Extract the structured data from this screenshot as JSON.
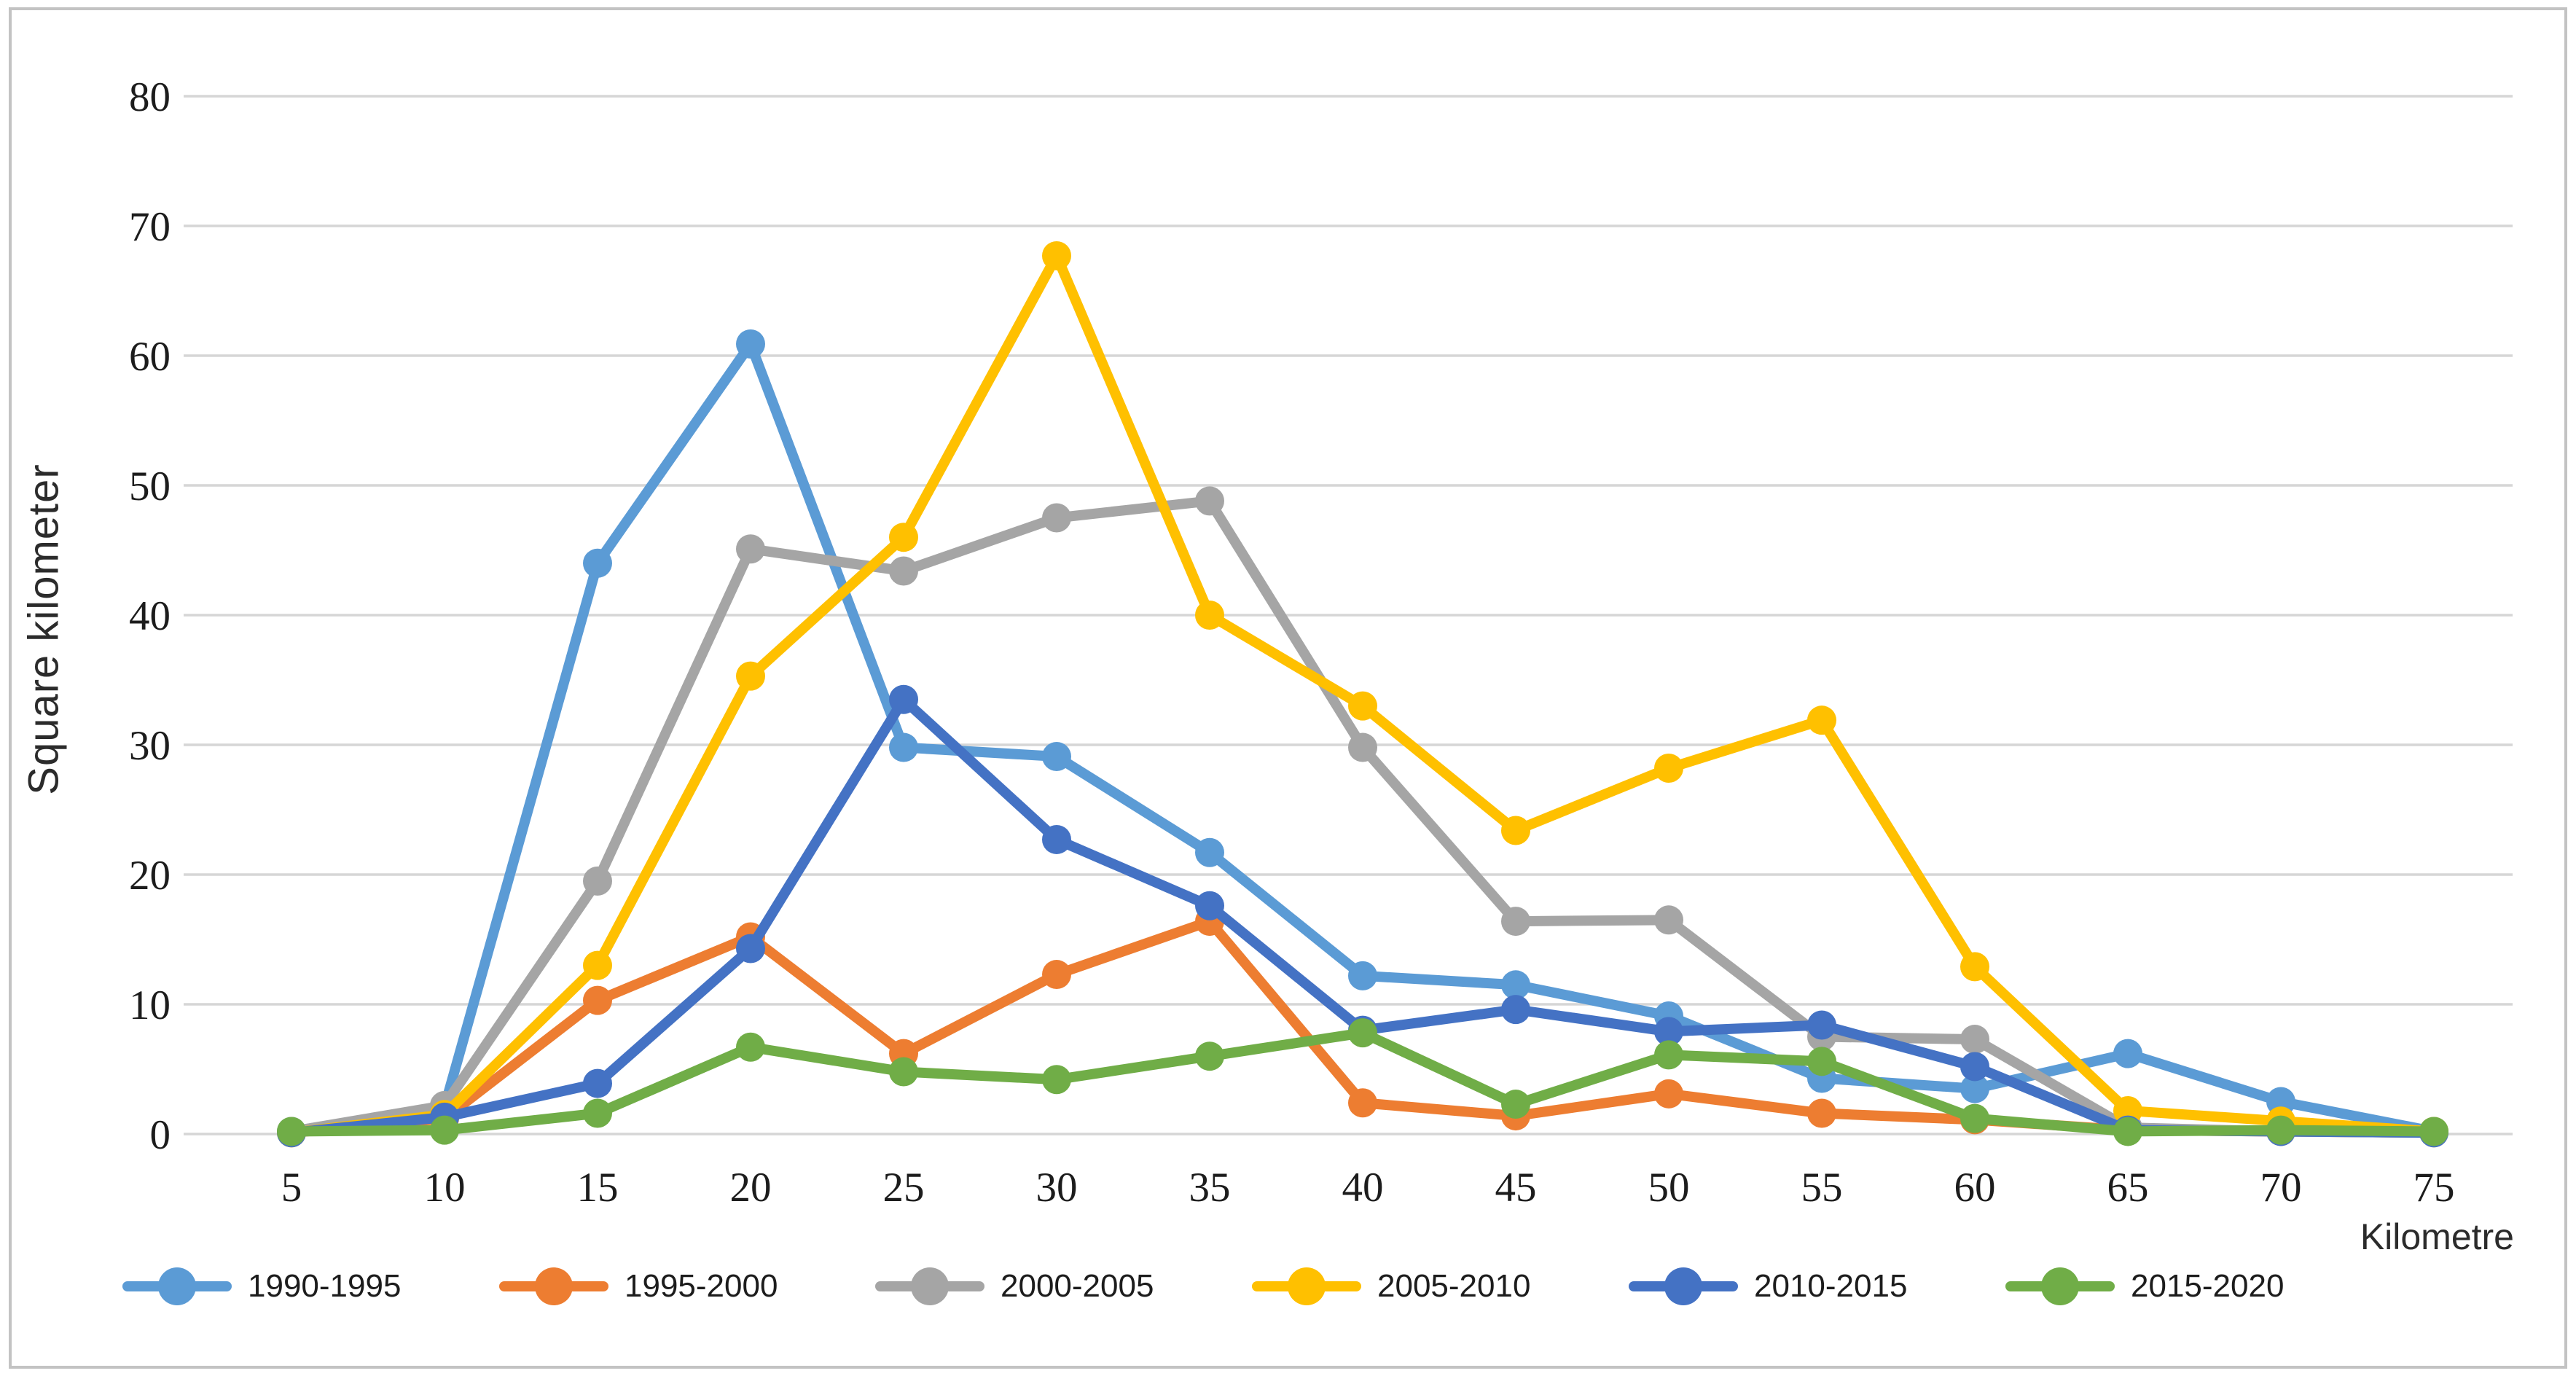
{
  "style": {
    "background": "#ffffff",
    "frame_border_color": "#c3c3c3",
    "gridline_color": "#d6d6d6",
    "tick_text_color": "#1c1c1c"
  },
  "chart_data": {
    "type": "line",
    "title": "",
    "xlabel": "Kilometre",
    "ylabel": "Square kilometer",
    "x": [
      5,
      10,
      15,
      20,
      25,
      30,
      35,
      40,
      45,
      50,
      55,
      60,
      65,
      70,
      75
    ],
    "ylim": [
      0,
      80
    ],
    "ytick_step": 10,
    "grid": "horizontal",
    "legend_position": "bottom",
    "marker": "circle",
    "series": [
      {
        "name": "1990-1995",
        "color": "#5B9BD5",
        "values": [
          0.2,
          2.1,
          44.0,
          60.9,
          29.8,
          29.1,
          21.7,
          12.2,
          11.5,
          9.1,
          4.3,
          3.5,
          6.2,
          2.5,
          0.2
        ]
      },
      {
        "name": "1995-2000",
        "color": "#ED7D31",
        "values": [
          0.1,
          1.2,
          10.3,
          15.2,
          6.2,
          12.3,
          16.4,
          2.4,
          1.4,
          3.1,
          1.6,
          1.1,
          0.3,
          0.2,
          0.1
        ]
      },
      {
        "name": "2000-2005",
        "color": "#A5A5A5",
        "values": [
          0.2,
          2.2,
          19.5,
          45.1,
          43.4,
          47.5,
          48.8,
          29.8,
          16.4,
          16.5,
          7.5,
          7.3,
          0.5,
          0.2,
          0.1
        ]
      },
      {
        "name": "2005-2010",
        "color": "#FFC000",
        "values": [
          0.1,
          1.5,
          13.0,
          35.3,
          46.0,
          67.7,
          40.0,
          33.0,
          23.4,
          28.2,
          31.9,
          12.9,
          1.8,
          1.0,
          0.2
        ]
      },
      {
        "name": "2010-2015",
        "color": "#4472C4",
        "values": [
          0.1,
          1.3,
          3.9,
          14.3,
          33.5,
          22.7,
          17.6,
          8.0,
          9.6,
          7.9,
          8.4,
          5.2,
          0.3,
          0.2,
          0.1
        ]
      },
      {
        "name": "2015-2020",
        "color": "#70AD47",
        "values": [
          0.2,
          0.3,
          1.6,
          6.7,
          4.8,
          4.2,
          6.0,
          7.8,
          2.3,
          6.1,
          5.6,
          1.2,
          0.2,
          0.3,
          0.2
        ]
      }
    ]
  }
}
